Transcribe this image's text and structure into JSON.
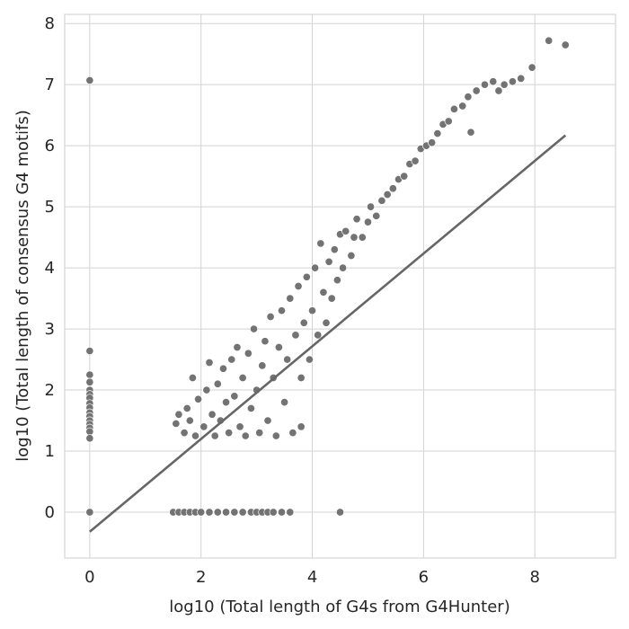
{
  "chart_data": {
    "type": "scatter",
    "title": "",
    "xlabel": "log10 (Total length of G4s from G4Hunter)",
    "ylabel": "log10 (Total length of consensus G4 motifs)",
    "xlim": [
      -0.45,
      9.45
    ],
    "ylim": [
      -0.75,
      8.15
    ],
    "xticks": [
      0,
      2,
      4,
      6,
      8
    ],
    "yticks": [
      0,
      1,
      2,
      3,
      4,
      5,
      6,
      7,
      8
    ],
    "grid": true,
    "point_color": "#737373",
    "point_edge_color": "#ffffff",
    "line_color": "#666666",
    "fit_line": {
      "x": [
        0,
        8.55
      ],
      "y": [
        -0.32,
        6.17
      ]
    },
    "points": [
      [
        0,
        7.07
      ],
      [
        0,
        2.64
      ],
      [
        0,
        2.25
      ],
      [
        0,
        2.13
      ],
      [
        0,
        2.0
      ],
      [
        0,
        1.93
      ],
      [
        0,
        1.87
      ],
      [
        0,
        1.78
      ],
      [
        0,
        1.71
      ],
      [
        0,
        1.63
      ],
      [
        0,
        1.57
      ],
      [
        0,
        1.5
      ],
      [
        0,
        1.44
      ],
      [
        0,
        1.38
      ],
      [
        0,
        1.32
      ],
      [
        0,
        1.21
      ],
      [
        0,
        0
      ],
      [
        1.5,
        0
      ],
      [
        1.6,
        0
      ],
      [
        1.7,
        0
      ],
      [
        1.8,
        0
      ],
      [
        1.9,
        0
      ],
      [
        2.0,
        0
      ],
      [
        2.15,
        0
      ],
      [
        2.3,
        0
      ],
      [
        2.45,
        0
      ],
      [
        2.6,
        0
      ],
      [
        2.75,
        0
      ],
      [
        2.9,
        0
      ],
      [
        3.0,
        0
      ],
      [
        3.1,
        0
      ],
      [
        3.2,
        0
      ],
      [
        3.3,
        0
      ],
      [
        3.45,
        0
      ],
      [
        3.6,
        0
      ],
      [
        4.5,
        0
      ],
      [
        1.55,
        1.45
      ],
      [
        1.6,
        1.6
      ],
      [
        1.7,
        1.3
      ],
      [
        1.75,
        1.7
      ],
      [
        1.8,
        1.5
      ],
      [
        1.85,
        2.2
      ],
      [
        1.9,
        1.25
      ],
      [
        1.95,
        1.85
      ],
      [
        2.05,
        1.4
      ],
      [
        2.1,
        2.0
      ],
      [
        2.15,
        2.45
      ],
      [
        2.2,
        1.6
      ],
      [
        2.25,
        1.25
      ],
      [
        2.3,
        2.1
      ],
      [
        2.35,
        1.5
      ],
      [
        2.4,
        2.35
      ],
      [
        2.45,
        1.8
      ],
      [
        2.5,
        1.3
      ],
      [
        2.55,
        2.5
      ],
      [
        2.6,
        1.9
      ],
      [
        2.65,
        2.7
      ],
      [
        2.7,
        1.4
      ],
      [
        2.75,
        2.2
      ],
      [
        2.8,
        1.25
      ],
      [
        2.85,
        2.6
      ],
      [
        2.9,
        1.7
      ],
      [
        2.95,
        3.0
      ],
      [
        3.0,
        2.0
      ],
      [
        3.05,
        1.3
      ],
      [
        3.1,
        2.4
      ],
      [
        3.15,
        2.8
      ],
      [
        3.2,
        1.5
      ],
      [
        3.25,
        3.2
      ],
      [
        3.3,
        2.2
      ],
      [
        3.35,
        1.25
      ],
      [
        3.4,
        2.7
      ],
      [
        3.45,
        3.3
      ],
      [
        3.5,
        1.8
      ],
      [
        3.55,
        2.5
      ],
      [
        3.6,
        3.5
      ],
      [
        3.65,
        1.3
      ],
      [
        3.7,
        2.9
      ],
      [
        3.75,
        3.7
      ],
      [
        3.8,
        2.2
      ],
      [
        3.8,
        1.4
      ],
      [
        3.85,
        3.1
      ],
      [
        3.9,
        3.85
      ],
      [
        3.95,
        2.5
      ],
      [
        4.0,
        3.3
      ],
      [
        4.05,
        4.0
      ],
      [
        4.1,
        2.9
      ],
      [
        4.15,
        4.4
      ],
      [
        4.2,
        3.6
      ],
      [
        4.25,
        3.1
      ],
      [
        4.3,
        4.1
      ],
      [
        4.35,
        3.5
      ],
      [
        4.4,
        4.3
      ],
      [
        4.45,
        3.8
      ],
      [
        4.5,
        4.55
      ],
      [
        4.55,
        4.0
      ],
      [
        4.6,
        4.6
      ],
      [
        4.7,
        4.2
      ],
      [
        4.75,
        4.5
      ],
      [
        4.8,
        4.8
      ],
      [
        4.9,
        4.5
      ],
      [
        5.0,
        4.75
      ],
      [
        5.05,
        5.0
      ],
      [
        5.15,
        4.85
      ],
      [
        5.25,
        5.1
      ],
      [
        5.35,
        5.2
      ],
      [
        5.45,
        5.3
      ],
      [
        5.55,
        5.45
      ],
      [
        5.65,
        5.5
      ],
      [
        5.75,
        5.7
      ],
      [
        5.85,
        5.75
      ],
      [
        5.95,
        5.95
      ],
      [
        6.05,
        6.0
      ],
      [
        6.15,
        6.05
      ],
      [
        6.25,
        6.2
      ],
      [
        6.35,
        6.35
      ],
      [
        6.45,
        6.4
      ],
      [
        6.55,
        6.6
      ],
      [
        6.7,
        6.65
      ],
      [
        6.8,
        6.8
      ],
      [
        6.85,
        6.22
      ],
      [
        6.95,
        6.9
      ],
      [
        7.1,
        7.0
      ],
      [
        7.25,
        7.05
      ],
      [
        7.35,
        6.9
      ],
      [
        7.45,
        7.0
      ],
      [
        7.6,
        7.05
      ],
      [
        7.75,
        7.1
      ],
      [
        7.95,
        7.28
      ],
      [
        8.25,
        7.72
      ],
      [
        8.55,
        7.65
      ]
    ]
  }
}
